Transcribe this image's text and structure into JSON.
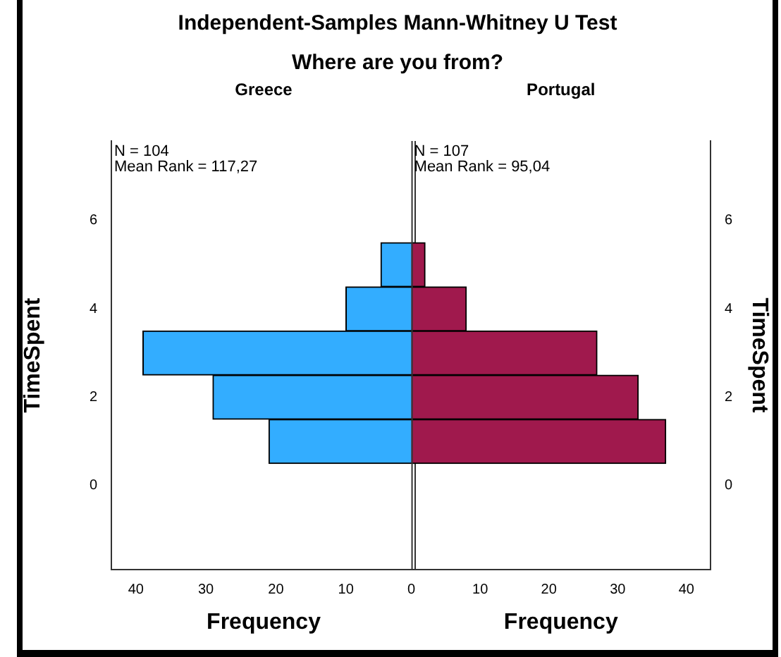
{
  "chart_data": [
    {
      "type": "other",
      "title": "Independent-Samples Mann-Whitney U Test",
      "subtitle": "Where are you from?"
    },
    {
      "type": "histogram",
      "orientation": "horizontal",
      "title": "Greece",
      "xlabel": "Frequency",
      "ylabel": "TimeSpent",
      "bins": [
        0.5,
        1.5,
        2.5,
        3.5,
        4.5,
        5.5
      ],
      "values": [
        21,
        29,
        39,
        10,
        5
      ],
      "color": "#33adff",
      "xlim": [
        43.5,
        0
      ],
      "xticks": [
        40,
        30,
        20,
        10,
        {
          "value": 0,
          "label": null
        }
      ],
      "ylim": [
        -1.9,
        7.8
      ],
      "yticks": [
        0,
        2,
        4,
        6
      ],
      "annotations": [
        "N = 104",
        "Mean Rank = 117,27"
      ]
    },
    {
      "type": "histogram",
      "orientation": "horizontal",
      "title": "Portugal",
      "xlabel": "Frequency",
      "ylabel": "TimeSpent",
      "bins": [
        0.5,
        1.5,
        2.5,
        3.5,
        4.5,
        5.5
      ],
      "values": [
        37,
        33,
        27,
        8,
        2
      ],
      "color": "#a0194d",
      "xlim": [
        0,
        43.5
      ],
      "xticks": [
        0,
        10,
        20,
        30,
        40
      ],
      "ylim": [
        -1.9,
        7.8
      ],
      "yticks": [
        0,
        2,
        4,
        6
      ],
      "annotations": [
        "N = 107",
        "Mean Rank = 95,04"
      ]
    }
  ]
}
